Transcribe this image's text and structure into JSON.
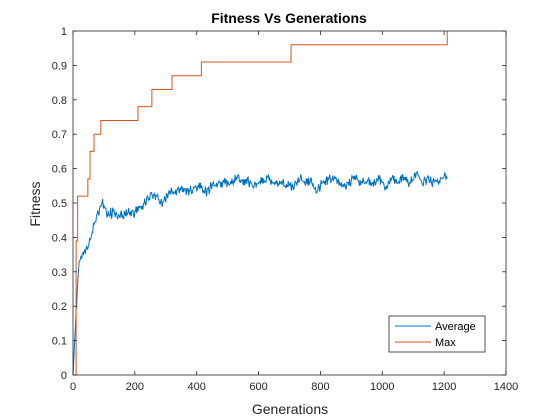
{
  "chart_data": {
    "type": "line",
    "title": "Fitness Vs Generations",
    "xlabel": "Generations",
    "ylabel": "Fitness",
    "xlim": [
      0,
      1400
    ],
    "ylim": [
      0,
      1
    ],
    "xticks": [
      0,
      200,
      400,
      600,
      800,
      1000,
      1200,
      1400
    ],
    "yticks": [
      0,
      0.1,
      0.2,
      0.3,
      0.4,
      0.5,
      0.6,
      0.7,
      0.8,
      0.9,
      1
    ],
    "grid": false,
    "legend_position": "bottom-right",
    "series": [
      {
        "name": "Average",
        "color": "#0072BD",
        "style": "noisy",
        "x": [
          0,
          10,
          20,
          30,
          40,
          50,
          60,
          70,
          80,
          90,
          100,
          110,
          130,
          150,
          170,
          190,
          210,
          230,
          250,
          270,
          290,
          310,
          330,
          350,
          370,
          390,
          410,
          430,
          450,
          470,
          490,
          510,
          530,
          550,
          570,
          590,
          610,
          630,
          650,
          670,
          690,
          710,
          730,
          750,
          770,
          790,
          810,
          830,
          850,
          870,
          890,
          910,
          930,
          950,
          970,
          990,
          1010,
          1030,
          1050,
          1070,
          1090,
          1110,
          1130,
          1150,
          1170,
          1190,
          1210
        ],
        "y": [
          0.0,
          0.18,
          0.33,
          0.35,
          0.36,
          0.38,
          0.41,
          0.45,
          0.47,
          0.49,
          0.5,
          0.47,
          0.47,
          0.46,
          0.47,
          0.47,
          0.48,
          0.5,
          0.52,
          0.52,
          0.5,
          0.53,
          0.53,
          0.54,
          0.53,
          0.54,
          0.55,
          0.53,
          0.55,
          0.55,
          0.56,
          0.55,
          0.58,
          0.56,
          0.56,
          0.55,
          0.57,
          0.57,
          0.55,
          0.56,
          0.55,
          0.55,
          0.57,
          0.56,
          0.56,
          0.54,
          0.56,
          0.57,
          0.57,
          0.55,
          0.56,
          0.57,
          0.56,
          0.56,
          0.56,
          0.57,
          0.55,
          0.57,
          0.56,
          0.57,
          0.56,
          0.58,
          0.56,
          0.57,
          0.56,
          0.57,
          0.58
        ]
      },
      {
        "name": "Max",
        "color": "#D95319",
        "style": "step",
        "x": [
          0,
          10,
          15,
          40,
          48,
          55,
          68,
          90,
          110,
          160,
          210,
          255,
          320,
          415,
          705,
          1205,
          1210
        ],
        "y": [
          0.0,
          0.39,
          0.52,
          0.52,
          0.57,
          0.65,
          0.7,
          0.74,
          0.74,
          0.74,
          0.78,
          0.83,
          0.87,
          0.91,
          0.96,
          0.96,
          1.0
        ]
      }
    ]
  }
}
